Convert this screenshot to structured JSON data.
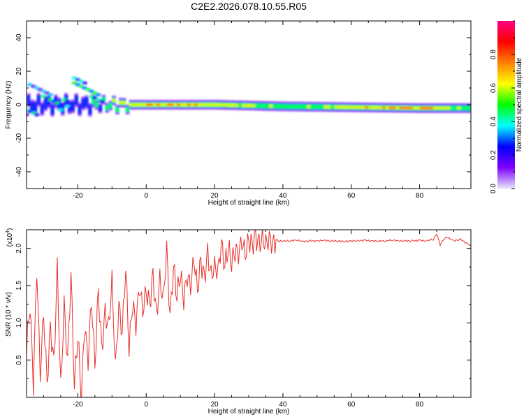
{
  "figure": {
    "title": "C2E2.2026.078.10.55.R05"
  },
  "chart_data": [
    {
      "type": "heatmap",
      "title": "C2E2.2026.078.10.55.R05",
      "xlabel": "Height of straight line (km)",
      "ylabel": "Frequency (Hz)",
      "xlim": [
        -35,
        95
      ],
      "ylim": [
        -50,
        50
      ],
      "x_ticks": [
        -20,
        0,
        20,
        40,
        60,
        80
      ],
      "y_ticks": [
        -40,
        -20,
        0,
        20,
        40
      ],
      "colorbar": {
        "label": "Normalized spectral amplitude",
        "range": [
          0,
          1
        ],
        "ticks": [
          0.0,
          0.2,
          0.4,
          0.6,
          0.8
        ],
        "stops": [
          "#e6e6fa",
          "#7f00ff",
          "#0000ff",
          "#00ffff",
          "#00ff00",
          "#ffff00",
          "#ff8000",
          "#ff0000",
          "#ff0080"
        ]
      },
      "ridge": {
        "height_km": [
          -35,
          -20,
          -10,
          0,
          20,
          40,
          60,
          80,
          95
        ],
        "center_freq_hz": [
          0,
          0,
          0,
          0,
          0,
          -1,
          -1.5,
          -2,
          -2
        ],
        "amplitude": [
          0.3,
          0.35,
          0.6,
          0.9,
          0.8,
          0.55,
          0.75,
          0.95,
          0.5
        ]
      }
    },
    {
      "type": "line",
      "xlabel": "Height of straight line (km)",
      "ylabel": "SNR (10 * v/v)",
      "scale_label": "(x10",
      "scale_exp": "4",
      "scale_close": ")",
      "xlim": [
        -35,
        95
      ],
      "ylim": [
        0,
        2.25
      ],
      "x_ticks": [
        -20,
        0,
        20,
        40,
        60,
        80
      ],
      "y_ticks": [
        0.5,
        1.0,
        1.5,
        2.0
      ],
      "color": "#e8302a",
      "series": [
        {
          "name": "SNR",
          "x": [
            -35,
            -34,
            -33,
            -32,
            -31,
            -30,
            -29,
            -28,
            -27,
            -26,
            -25,
            -24,
            -23,
            -22,
            -21,
            -20,
            -19,
            -18,
            -17,
            -16,
            -15,
            -14,
            -13,
            -12,
            -11,
            -10,
            -9,
            -8,
            -7,
            -6,
            -5,
            -4,
            -3,
            -2,
            -1,
            0,
            1,
            2,
            3,
            4,
            5,
            6,
            7,
            8,
            9,
            10,
            11,
            12,
            13,
            14,
            15,
            16,
            17,
            18,
            19,
            20,
            21,
            22,
            23,
            24,
            25,
            26,
            27,
            28,
            29,
            30,
            31,
            32,
            33,
            34,
            35,
            36,
            37,
            38,
            39,
            40,
            42,
            44,
            46,
            48,
            50,
            52,
            54,
            56,
            58,
            60,
            62,
            64,
            66,
            68,
            70,
            72,
            74,
            76,
            78,
            80,
            82,
            83,
            84,
            85,
            86,
            87,
            88,
            90,
            92,
            94,
            95
          ],
          "y": [
            0.7,
            1.3,
            0.2,
            1.75,
            0.3,
            1.1,
            0.15,
            0.9,
            0.4,
            1.7,
            0.1,
            1.25,
            0.5,
            1.7,
            0.2,
            0.9,
            0.05,
            1.0,
            0.5,
            1.3,
            0.4,
            1.4,
            0.6,
            1.1,
            0.9,
            1.55,
            0.4,
            1.25,
            0.9,
            1.8,
            0.7,
            1.3,
            1.0,
            1.5,
            1.15,
            1.4,
            1.2,
            1.6,
            1.05,
            1.55,
            1.3,
            2.0,
            1.1,
            1.8,
            1.4,
            1.7,
            1.35,
            1.65,
            1.5,
            1.85,
            1.4,
            1.8,
            1.55,
            1.9,
            1.6,
            1.75,
            1.7,
            2.1,
            1.8,
            2.05,
            1.85,
            2.0,
            1.95,
            2.1,
            1.9,
            2.08,
            2.0,
            2.12,
            2.02,
            2.1,
            2.05,
            2.15,
            2.08,
            2.12,
            2.1,
            2.1,
            2.1,
            2.11,
            2.09,
            2.1,
            2.1,
            2.11,
            2.1,
            2.1,
            2.09,
            2.1,
            2.1,
            2.11,
            2.1,
            2.1,
            2.1,
            2.11,
            2.1,
            2.1,
            2.1,
            2.11,
            2.1,
            2.12,
            2.12,
            2.2,
            2.05,
            2.12,
            2.15,
            2.1,
            2.12,
            2.06,
            2.04
          ]
        }
      ]
    }
  ]
}
